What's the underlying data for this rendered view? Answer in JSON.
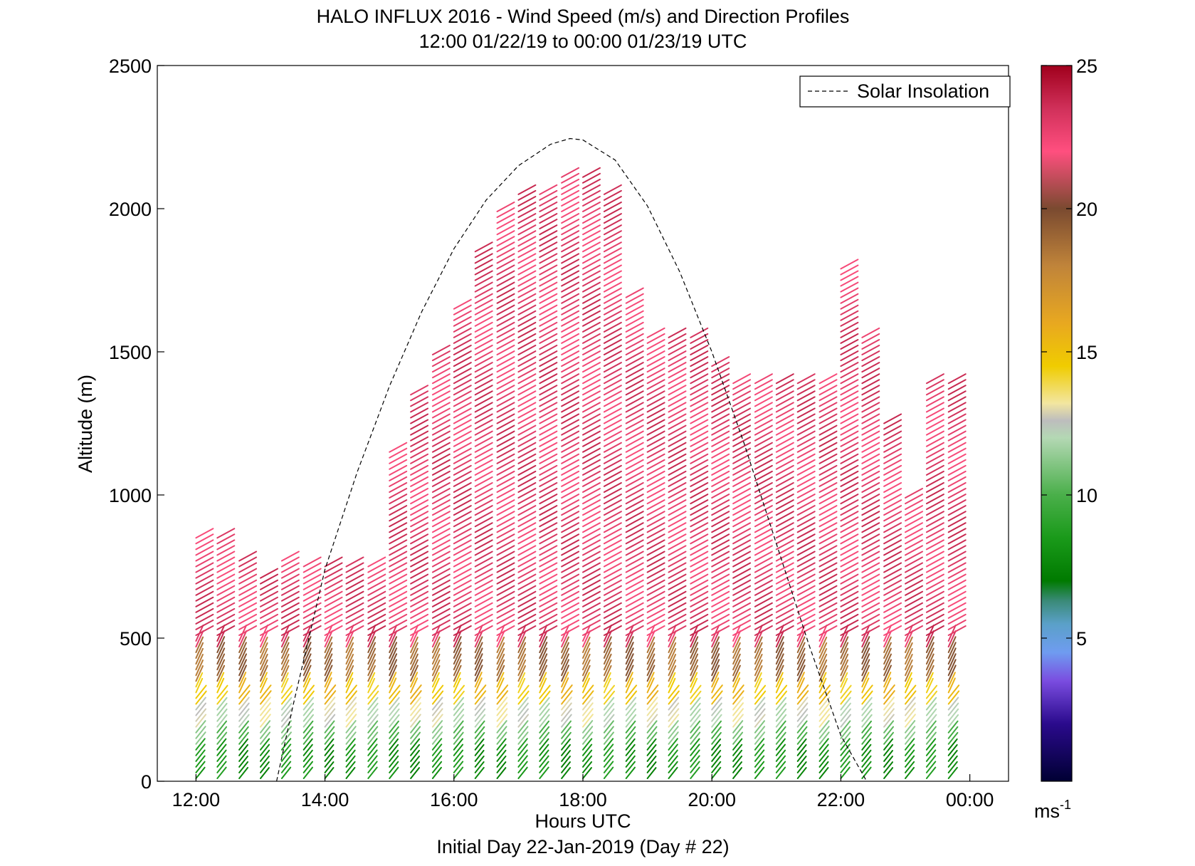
{
  "chart_data": {
    "type": "quiver",
    "title": "HALO INFLUX 2016 - Wind Speed (m/s) and Direction Profiles",
    "subtitle": "12:00 01/22/19 to 00:00 01/23/19  UTC",
    "xlabel": "Hours UTC",
    "xlabel_sub": "Initial Day 22-Jan-2019 (Day # 22)",
    "ylabel": "Altitude (m)",
    "x_unit": "hours UTC",
    "xlim": [
      11.4,
      24.6
    ],
    "ylim": [
      0,
      2500
    ],
    "x_ticks": [
      12,
      14,
      16,
      18,
      20,
      22,
      24
    ],
    "x_tick_labels": [
      "12:00",
      "14:00",
      "16:00",
      "18:00",
      "20:00",
      "22:00",
      "00:00"
    ],
    "y_ticks": [
      0,
      500,
      1000,
      1500,
      2000,
      2500
    ],
    "y_tick_labels": [
      "0",
      "500",
      "1000",
      "1500",
      "2000",
      "2500"
    ],
    "legend": {
      "entry": "Solar Insolation",
      "style": "dashed black line",
      "placement": "top-right"
    },
    "solar_insolation": {
      "description_values": "dashed curve, altitude-scaled",
      "x": [
        13.25,
        13.5,
        14.0,
        14.5,
        15.0,
        15.5,
        16.0,
        16.5,
        17.0,
        17.5,
        17.8,
        18.0,
        18.5,
        19.0,
        19.5,
        20.0,
        20.5,
        21.0,
        21.5,
        22.0,
        22.4
      ],
      "y": [
        0,
        260,
        740,
        1080,
        1380,
        1640,
        1860,
        2030,
        2150,
        2225,
        2245,
        2240,
        2170,
        2010,
        1780,
        1500,
        1180,
        830,
        480,
        160,
        0
      ]
    },
    "colorbar": {
      "label": "ms",
      "label_superscript": "-1",
      "range": [
        0,
        25
      ],
      "ticks": [
        5,
        10,
        15,
        20,
        25
      ],
      "tick_labels": [
        "5",
        "10",
        "15",
        "20",
        "25"
      ],
      "stops": [
        {
          "v": 0,
          "color": "#000033"
        },
        {
          "v": 2,
          "color": "#2a0a8c"
        },
        {
          "v": 3.5,
          "color": "#7a4ce0"
        },
        {
          "v": 4.5,
          "color": "#6f9cf0"
        },
        {
          "v": 5.5,
          "color": "#5aa0c8"
        },
        {
          "v": 6.3,
          "color": "#3a8a78"
        },
        {
          "v": 7,
          "color": "#007a00"
        },
        {
          "v": 8.5,
          "color": "#1a9a1a"
        },
        {
          "v": 10,
          "color": "#4aaf4a"
        },
        {
          "v": 12,
          "color": "#b4d8b4"
        },
        {
          "v": 12.6,
          "color": "#bdbdbd"
        },
        {
          "v": 13.2,
          "color": "#f2e6a0"
        },
        {
          "v": 14.5,
          "color": "#f0cc00"
        },
        {
          "v": 16,
          "color": "#e8a820"
        },
        {
          "v": 18,
          "color": "#c0843a"
        },
        {
          "v": 20,
          "color": "#7a4a30"
        },
        {
          "v": 22,
          "color": "#ff4f7f"
        },
        {
          "v": 23.5,
          "color": "#d0305a"
        },
        {
          "v": 25,
          "color": "#a0001c"
        }
      ]
    },
    "profiles": {
      "description_values": "wind barbs; each profile: hour (UTC) and altitude range (m); color = wind speed",
      "x_hours": [
        12.0,
        12.33,
        12.67,
        13.0,
        13.33,
        13.67,
        14.0,
        14.33,
        14.67,
        15.0,
        15.33,
        15.67,
        16.0,
        16.33,
        16.67,
        17.0,
        17.33,
        17.67,
        18.0,
        18.33,
        18.67,
        19.0,
        19.33,
        19.67,
        20.0,
        20.33,
        20.67,
        21.0,
        21.33,
        21.67,
        22.0,
        22.33,
        22.67,
        23.0,
        23.33,
        23.67
      ],
      "top_altitudes": [
        860,
        860,
        780,
        720,
        780,
        750,
        750,
        750,
        750,
        1150,
        1350,
        1500,
        1650,
        1850,
        2000,
        2050,
        2050,
        2120,
        2120,
        2050,
        1700,
        1550,
        1550,
        1550,
        1450,
        1400,
        1400,
        1400,
        1400,
        1400,
        1800,
        1550,
        1250,
        1000,
        1400,
        1400
      ],
      "speed_bands": [
        {
          "from": 0,
          "to": 120,
          "speed": 8
        },
        {
          "from": 120,
          "to": 190,
          "speed": 10.5
        },
        {
          "from": 190,
          "to": 260,
          "speed": 12.5
        },
        {
          "from": 260,
          "to": 340,
          "speed": 15
        },
        {
          "from": 340,
          "to": 460,
          "speed": 19
        },
        {
          "from": 460,
          "to": 9999,
          "speed": 23
        }
      ]
    }
  }
}
